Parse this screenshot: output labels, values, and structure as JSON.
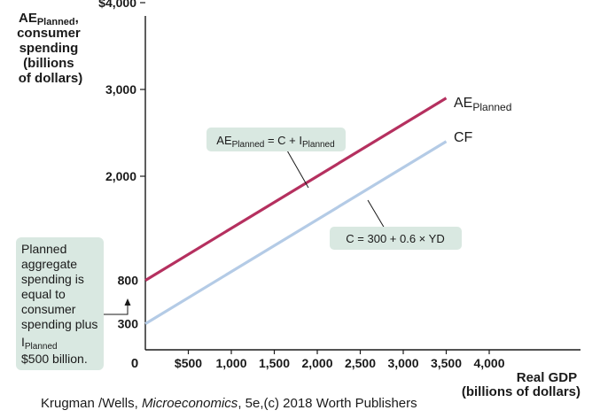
{
  "chart_data": {
    "type": "line",
    "ylabel": {
      "ae": "AE",
      "ae_sub": "Planned",
      "comma": ",",
      "lines": [
        "consumer",
        "spending",
        "(billions",
        "of dollars)"
      ]
    },
    "xlabel": {
      "lines": [
        "Real GDP",
        "(billions of dollars)"
      ]
    },
    "xlim": [
      0,
      5000
    ],
    "ylim": [
      0,
      4000
    ],
    "x_ticks": [
      {
        "value": 500,
        "label": "$500"
      },
      {
        "value": 1000,
        "label": "1,000"
      },
      {
        "value": 1500,
        "label": "1,500"
      },
      {
        "value": 2000,
        "label": "2,000"
      },
      {
        "value": 2500,
        "label": "2,500"
      },
      {
        "value": 3000,
        "label": "3,000"
      },
      {
        "value": 3500,
        "label": "3,500"
      },
      {
        "value": 4000,
        "label": "4,000"
      }
    ],
    "y_ticks": [
      {
        "value": 2000,
        "label": "2,000"
      },
      {
        "value": 3000,
        "label": "3,000"
      },
      {
        "value": 4000,
        "label": "$4,000"
      }
    ],
    "y_value_labels": [
      {
        "value": 800,
        "label": "800"
      },
      {
        "value": 300,
        "label": "300"
      }
    ],
    "origin_label": "0",
    "series": [
      {
        "key": "ae",
        "label": "AE",
        "label_sub": "Planned",
        "color": "#b5305f",
        "x": [
          0,
          3500
        ],
        "y": [
          800,
          2900
        ]
      },
      {
        "key": "cf",
        "label": "CF",
        "color": "#b4cbe6",
        "x": [
          0,
          3500
        ],
        "y": [
          300,
          2400
        ]
      }
    ],
    "annotations": {
      "ae_equation": {
        "pre": "AE",
        "sub1": "Planned",
        "mid": " = C + I",
        "sub2": "Planned"
      },
      "cf_equation": "C = 300 + 0.6 × YD",
      "note": {
        "lines": [
          "Planned",
          "aggregate",
          "spending is",
          "equal to",
          "consumer",
          "spending plus"
        ],
        "i": "I",
        "i_sub": "Planned",
        "last": "$500 billion."
      }
    }
  },
  "colors": {
    "callout_fill": "#d9e8e1",
    "axis": "#1a1a1a"
  },
  "credit": {
    "authors": "Krugman /Wells, ",
    "title": "Microeconomics",
    "rest": ", 5e,(c) 2018 Worth Publishers"
  }
}
